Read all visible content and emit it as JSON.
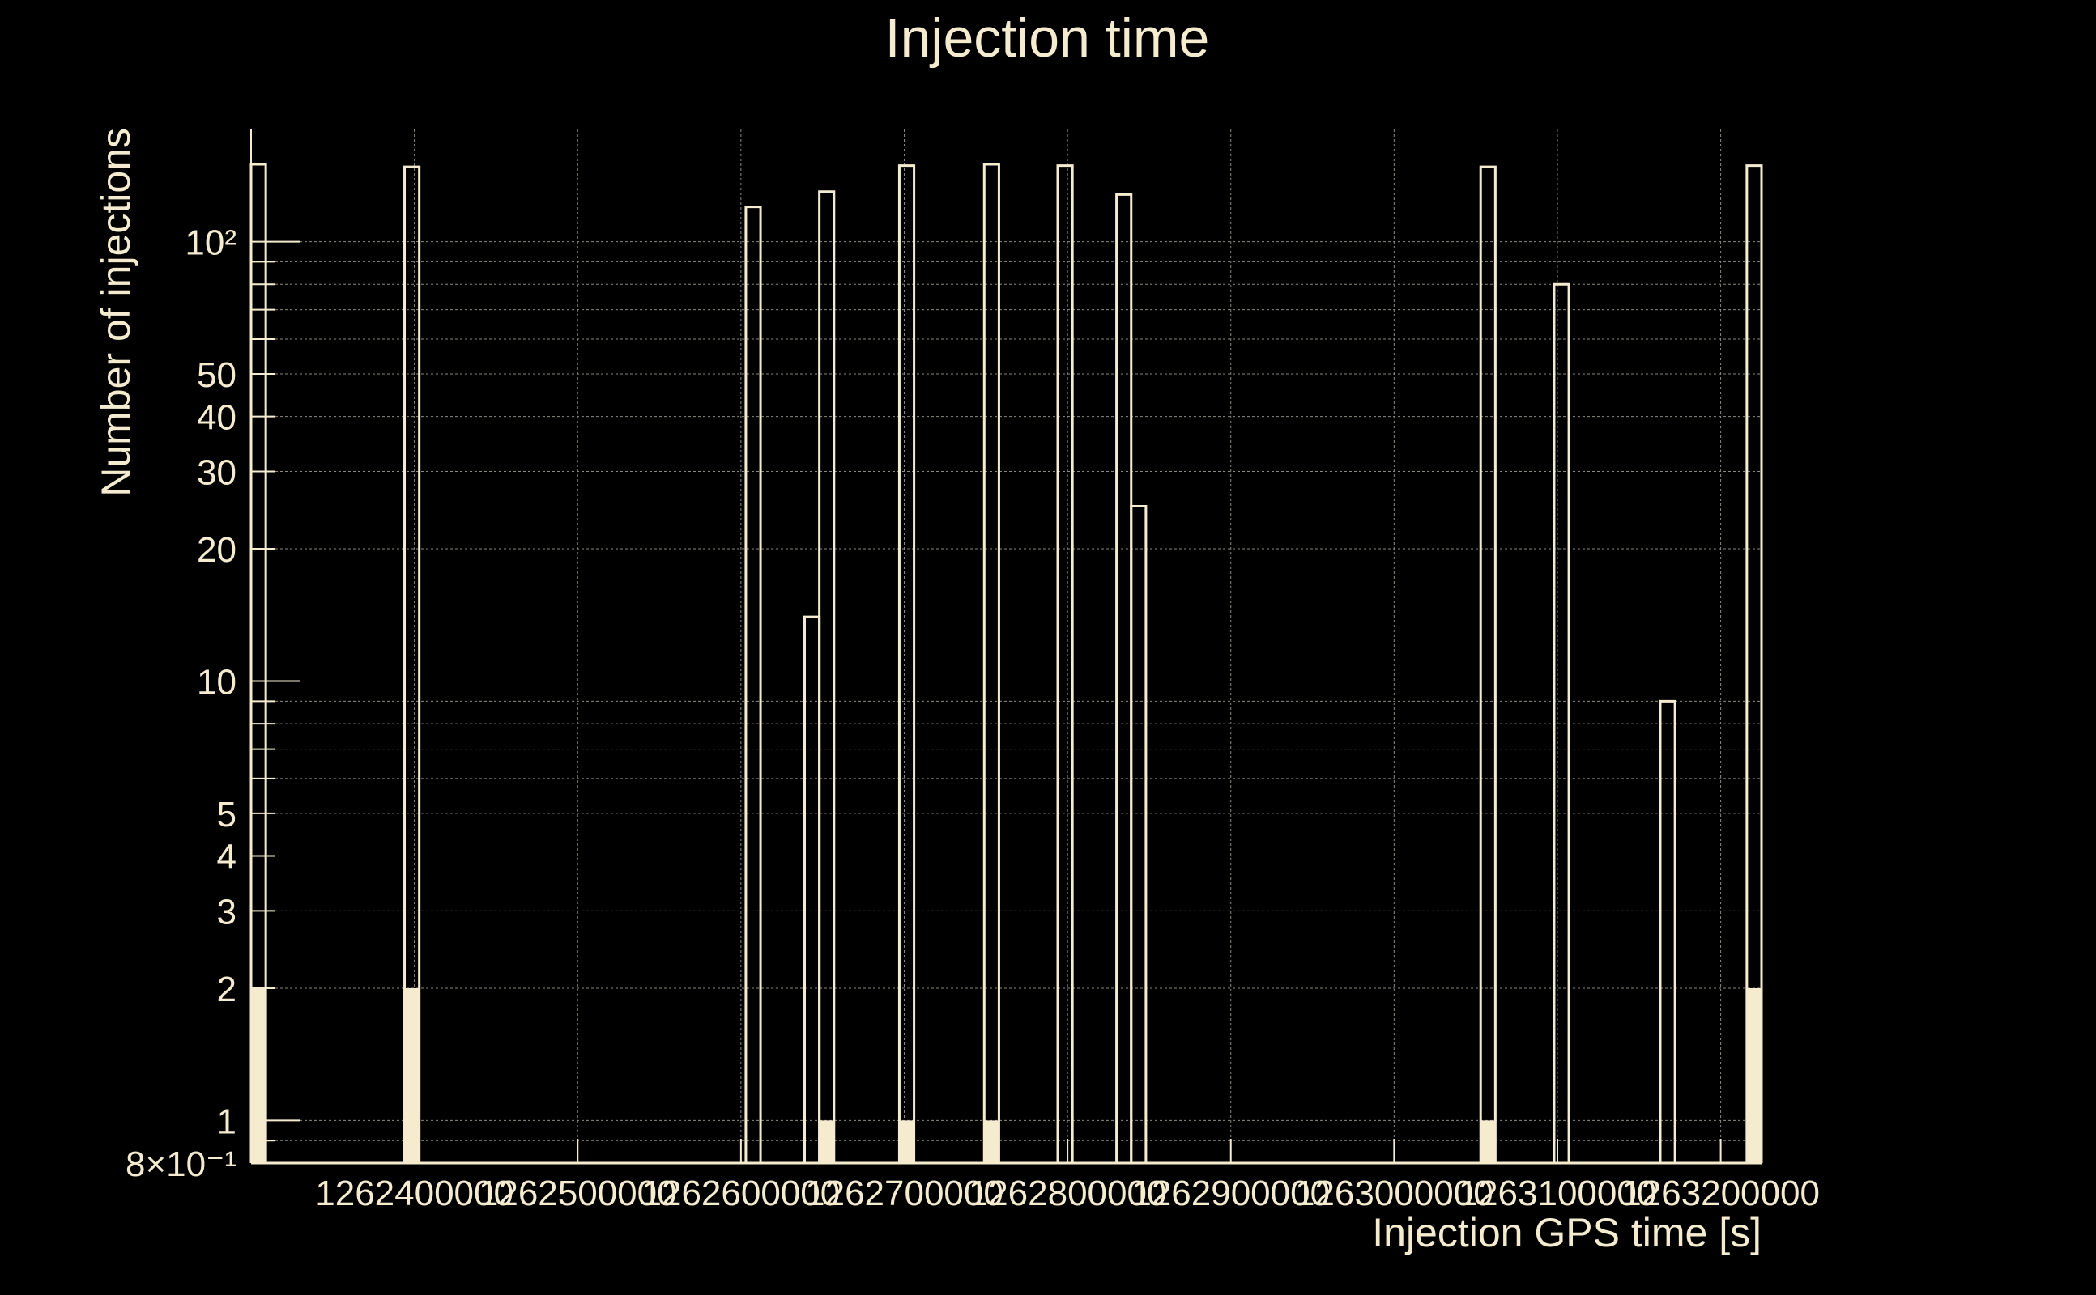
{
  "chart_data": {
    "type": "bar",
    "title": "Injection time",
    "xlabel": "Injection GPS time [s]",
    "ylabel": "Number of injections",
    "yscale": "log",
    "xlim": [
      1262300000,
      1263225000
    ],
    "ylim": [
      0.8,
      180
    ],
    "grid": true,
    "colors": {
      "background": "#000000",
      "foreground": "#f5ecd0",
      "grid": "#8a8a80"
    },
    "x_tick_values": [
      1262400000,
      1262500000,
      1262600000,
      1262700000,
      1262800000,
      1262900000,
      1263000000,
      1263100000,
      1263200000
    ],
    "x_tick_labels": [
      "1262400000",
      "1262500000",
      "1262600000",
      "1262700000",
      "1262800000",
      "1262900000",
      "1263000000",
      "1263100000",
      "1263200000"
    ],
    "y_tick_values": [
      0.8,
      1,
      2,
      3,
      4,
      5,
      10,
      20,
      30,
      40,
      50,
      100
    ],
    "y_tick_labels": [
      "8×10⁻¹",
      "1",
      "2",
      "3",
      "4",
      "5",
      "10",
      "20",
      "30",
      "40",
      "50",
      "10²"
    ],
    "series": [
      {
        "style": "outline",
        "bins": [
          {
            "x0": 1262300000,
            "x1": 1262309000,
            "value": 150
          },
          {
            "x0": 1262394000,
            "x1": 1262403000,
            "value": 148
          },
          {
            "x0": 1262603000,
            "x1": 1262612000,
            "value": 120
          },
          {
            "x0": 1262639000,
            "x1": 1262648000,
            "value": 14
          },
          {
            "x0": 1262648000,
            "x1": 1262657000,
            "value": 130
          },
          {
            "x0": 1262697000,
            "x1": 1262706000,
            "value": 149
          },
          {
            "x0": 1262749000,
            "x1": 1262758000,
            "value": 150
          },
          {
            "x0": 1262794000,
            "x1": 1262803000,
            "value": 149
          },
          {
            "x0": 1262830000,
            "x1": 1262839000,
            "value": 128
          },
          {
            "x0": 1262839000,
            "x1": 1262848000,
            "value": 25
          },
          {
            "x0": 1263053000,
            "x1": 1263062000,
            "value": 148
          },
          {
            "x0": 1263098000,
            "x1": 1263107000,
            "value": 80
          },
          {
            "x0": 1263163000,
            "x1": 1263172000,
            "value": 9
          },
          {
            "x0": 1263216000,
            "x1": 1263225000,
            "value": 149
          }
        ]
      },
      {
        "style": "filled",
        "bins": [
          {
            "x0": 1262300000,
            "x1": 1262309000,
            "value": 2
          },
          {
            "x0": 1262394000,
            "x1": 1262403000,
            "value": 2
          },
          {
            "x0": 1262648000,
            "x1": 1262657000,
            "value": 1
          },
          {
            "x0": 1262697000,
            "x1": 1262706000,
            "value": 1
          },
          {
            "x0": 1262749000,
            "x1": 1262758000,
            "value": 1
          },
          {
            "x0": 1263053000,
            "x1": 1263062000,
            "value": 1
          },
          {
            "x0": 1263216000,
            "x1": 1263225000,
            "value": 2
          }
        ]
      }
    ]
  }
}
